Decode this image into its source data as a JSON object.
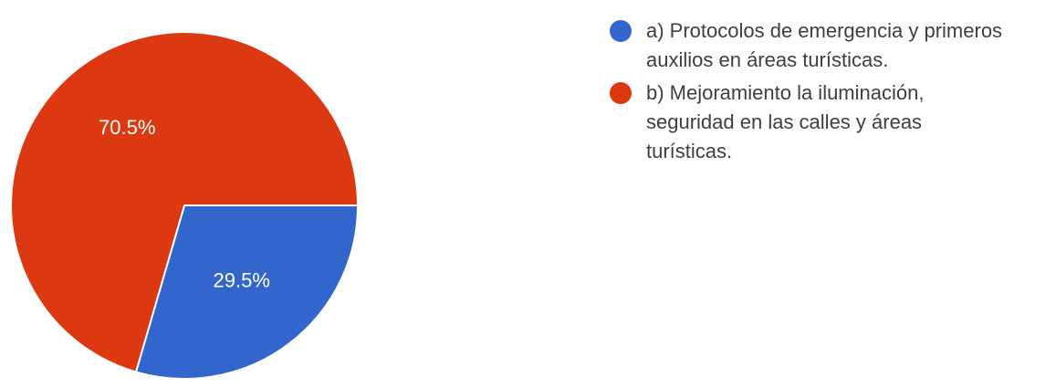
{
  "chart_data": {
    "type": "pie",
    "categories": [
      "a) Protocolos de emergencia y primeros auxilios en áreas turísticas.",
      "b) Mejoramiento la iluminación, seguridad en las calles y áreas turísticas."
    ],
    "values": [
      29.5,
      70.5
    ],
    "data_labels": [
      "29.5%",
      "70.5%"
    ],
    "colors": [
      "#3366cc",
      "#dc3912"
    ],
    "legend_position": "right"
  }
}
